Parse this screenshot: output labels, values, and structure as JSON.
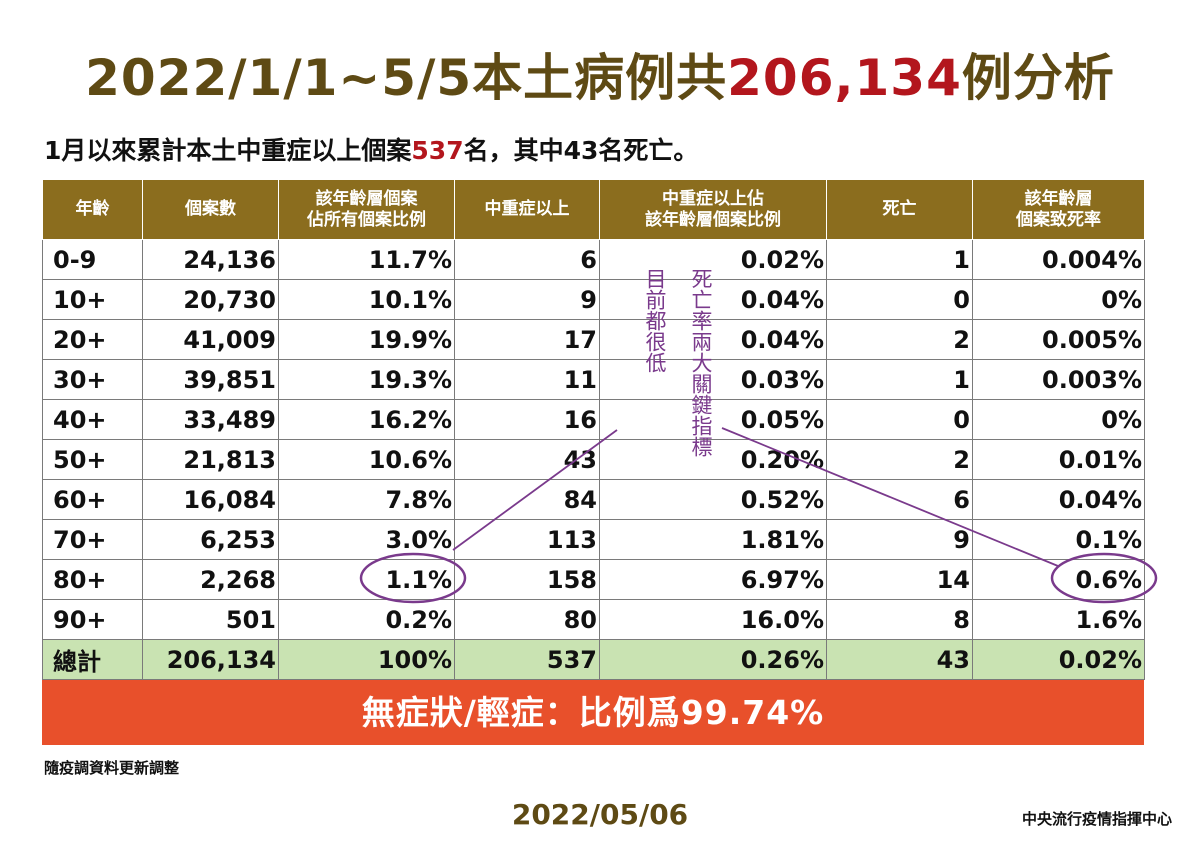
{
  "title": {
    "prefix": "2022/1/1~5/5本土病例共",
    "count": "206,134",
    "suffix": "例分析"
  },
  "subtitle": {
    "prefix": "1月以來累計本土中重症以上個案",
    "count": "537",
    "suffix": "名，其中43名死亡。"
  },
  "table": {
    "headers": [
      "年齡",
      "個案數",
      "該年齡層個案\n佔所有個案比例",
      "中重症以上",
      "中重症以上佔\n該年齡層個案比例",
      "死亡",
      "該年齡層\n個案致死率"
    ],
    "rows": [
      [
        "0-9",
        "24,136",
        "11.7%",
        "6",
        "0.02%",
        "1",
        "0.004%"
      ],
      [
        "10+",
        "20,730",
        "10.1%",
        "9",
        "0.04%",
        "0",
        "0%"
      ],
      [
        "20+",
        "41,009",
        "19.9%",
        "17",
        "0.04%",
        "2",
        "0.005%"
      ],
      [
        "30+",
        "39,851",
        "19.3%",
        "11",
        "0.03%",
        "1",
        "0.003%"
      ],
      [
        "40+",
        "33,489",
        "16.2%",
        "16",
        "0.05%",
        "0",
        "0%"
      ],
      [
        "50+",
        "21,813",
        "10.6%",
        "43",
        "0.20%",
        "2",
        "0.01%"
      ],
      [
        "60+",
        "16,084",
        "7.8%",
        "84",
        "0.52%",
        "6",
        "0.04%"
      ],
      [
        "70+",
        "6,253",
        "3.0%",
        "113",
        "1.81%",
        "9",
        "0.1%"
      ],
      [
        "80+",
        "2,268",
        "1.1%",
        "158",
        "6.97%",
        "14",
        "0.6%"
      ],
      [
        "90+",
        "501",
        "0.2%",
        "80",
        "16.0%",
        "8",
        "1.6%"
      ]
    ],
    "total": [
      "總計",
      "206,134",
      "100%",
      "537",
      "0.26%",
      "43",
      "0.02%"
    ]
  },
  "banner": "無症狀/輕症：比例爲99.74%",
  "annotations": {
    "left_vertical": "目前都很低",
    "right_vertical": "死亡率兩大關鍵指標",
    "color": "#7a3a8c"
  },
  "note": "隨疫調資料更新調整",
  "date": "2022/05/06",
  "org": "中央流行疫情指揮中心",
  "colors": {
    "title": "#5e4a14",
    "highlight": "#b3161d",
    "header_bg": "#8b6d1e",
    "total_bg": "#c9e3b2",
    "banner_bg": "#e8502b"
  }
}
